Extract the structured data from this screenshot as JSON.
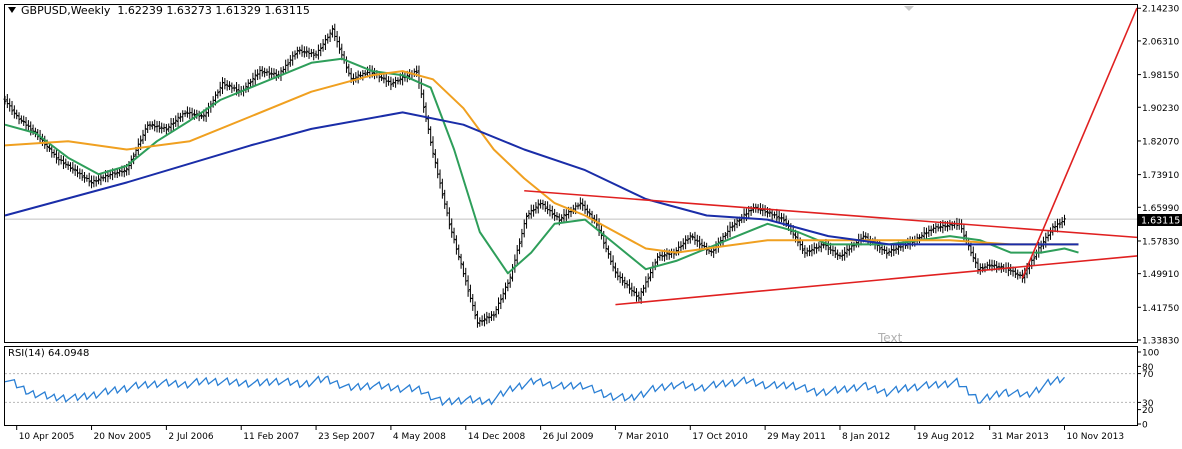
{
  "chart_title": {
    "symbol": "GBPUSD,Weekly",
    "ohlc": "1.62239 1.63273 1.61329 1.63115"
  },
  "rsi_label": "RSI(14) 64.0948",
  "annotation_text": "Text",
  "price_tag": "1.63115",
  "chart_data": [
    {
      "type": "line",
      "panel": "main-price",
      "title": "GBPUSD,Weekly",
      "ylim": [
        1.3383,
        2.1429
      ],
      "y_ticks": [
        "2.14230",
        "2.06310",
        "1.98150",
        "1.90230",
        "1.82070",
        "1.73910",
        "1.65990",
        "1.57830",
        "1.49910",
        "1.41750",
        "1.33830"
      ],
      "x_ticks": [
        "10 Apr 2005",
        "20 Nov 2005",
        "2 Jul 2006",
        "11 Feb 2007",
        "23 Sep 2007",
        "4 May 2008",
        "14 Dec 2008",
        "26 Jul 2009",
        "7 Mar 2010",
        "17 Oct 2010",
        "29 May 2011",
        "8 Jan 2012",
        "19 Aug 2012",
        "31 Mar 2013",
        "10 Nov 2013"
      ],
      "x_tick_dates": [
        "2005-04-10",
        "2005-11-20",
        "2006-07-02",
        "2007-02-11",
        "2007-09-23",
        "2008-05-04",
        "2008-12-14",
        "2009-07-26",
        "2010-03-07",
        "2010-10-17",
        "2011-05-29",
        "2012-01-08",
        "2012-08-19",
        "2013-03-31",
        "2013-11-10"
      ],
      "x_range": [
        "2005-03-06",
        "2014-06-15"
      ],
      "current_price": 1.63115,
      "price_points": [
        [
          "2005-03-06",
          1.92
        ],
        [
          "2005-04-10",
          1.88
        ],
        [
          "2005-06-05",
          1.84
        ],
        [
          "2005-08-07",
          1.78
        ],
        [
          "2005-10-16",
          1.74
        ],
        [
          "2005-11-20",
          1.72
        ],
        [
          "2006-01-15",
          1.74
        ],
        [
          "2006-03-05",
          1.75
        ],
        [
          "2006-05-07",
          1.86
        ],
        [
          "2006-07-02",
          1.85
        ],
        [
          "2006-08-27",
          1.89
        ],
        [
          "2006-10-22",
          1.88
        ],
        [
          "2006-12-17",
          1.96
        ],
        [
          "2007-02-11",
          1.94
        ],
        [
          "2007-04-08",
          1.99
        ],
        [
          "2007-06-03",
          1.98
        ],
        [
          "2007-07-29",
          2.04
        ],
        [
          "2007-09-23",
          2.03
        ],
        [
          "2007-11-11",
          2.09
        ],
        [
          "2008-01-06",
          1.97
        ],
        [
          "2008-03-02",
          1.99
        ],
        [
          "2008-05-04",
          1.96
        ],
        [
          "2008-07-20",
          1.99
        ],
        [
          "2008-09-07",
          1.79
        ],
        [
          "2008-10-26",
          1.62
        ],
        [
          "2008-11-30",
          1.52
        ],
        [
          "2009-01-18",
          1.38
        ],
        [
          "2009-03-08",
          1.4
        ],
        [
          "2009-04-26",
          1.49
        ],
        [
          "2009-06-14",
          1.64
        ],
        [
          "2009-07-26",
          1.67
        ],
        [
          "2009-09-20",
          1.63
        ],
        [
          "2009-11-22",
          1.67
        ],
        [
          "2010-01-10",
          1.62
        ],
        [
          "2010-03-07",
          1.5
        ],
        [
          "2010-05-16",
          1.44
        ],
        [
          "2010-07-11",
          1.54
        ],
        [
          "2010-08-29",
          1.55
        ],
        [
          "2010-10-17",
          1.59
        ],
        [
          "2010-12-19",
          1.55
        ],
        [
          "2011-02-13",
          1.61
        ],
        [
          "2011-04-24",
          1.66
        ],
        [
          "2011-05-29",
          1.65
        ],
        [
          "2011-07-24",
          1.63
        ],
        [
          "2011-09-25",
          1.55
        ],
        [
          "2011-11-20",
          1.57
        ],
        [
          "2012-01-08",
          1.54
        ],
        [
          "2012-03-18",
          1.59
        ],
        [
          "2012-05-27",
          1.55
        ],
        [
          "2012-08-19",
          1.58
        ],
        [
          "2012-10-14",
          1.61
        ],
        [
          "2012-12-30",
          1.62
        ],
        [
          "2013-02-24",
          1.51
        ],
        [
          "2013-03-31",
          1.52
        ],
        [
          "2013-05-26",
          1.51
        ],
        [
          "2013-07-07",
          1.49
        ],
        [
          "2013-08-25",
          1.56
        ],
        [
          "2013-10-06",
          1.61
        ],
        [
          "2013-11-10",
          1.63
        ]
      ],
      "series": [
        {
          "color": "#2e9e5a",
          "values": [
            [
              "2005-03-06",
              1.86
            ],
            [
              "2005-06-05",
              1.84
            ],
            [
              "2005-09-11",
              1.78
            ],
            [
              "2005-12-11",
              1.74
            ],
            [
              "2006-03-05",
              1.76
            ],
            [
              "2006-06-04",
              1.82
            ],
            [
              "2006-09-10",
              1.87
            ],
            [
              "2006-12-10",
              1.92
            ],
            [
              "2007-03-11",
              1.95
            ],
            [
              "2007-06-10",
              1.98
            ],
            [
              "2007-09-09",
              2.01
            ],
            [
              "2007-12-09",
              2.02
            ],
            [
              "2008-03-09",
              1.99
            ],
            [
              "2008-06-08",
              1.98
            ],
            [
              "2008-08-31",
              1.95
            ],
            [
              "2008-11-09",
              1.8
            ],
            [
              "2009-01-25",
              1.6
            ],
            [
              "2009-04-19",
              1.5
            ],
            [
              "2009-06-28",
              1.55
            ],
            [
              "2009-09-06",
              1.62
            ],
            [
              "2009-12-06",
              1.63
            ],
            [
              "2010-03-07",
              1.57
            ],
            [
              "2010-06-06",
              1.51
            ],
            [
              "2010-09-05",
              1.53
            ],
            [
              "2010-12-05",
              1.56
            ],
            [
              "2011-03-06",
              1.59
            ],
            [
              "2011-06-05",
              1.62
            ],
            [
              "2011-09-04",
              1.6
            ],
            [
              "2011-12-04",
              1.57
            ],
            [
              "2012-03-04",
              1.57
            ],
            [
              "2012-06-03",
              1.57
            ],
            [
              "2012-09-02",
              1.58
            ],
            [
              "2012-12-02",
              1.59
            ],
            [
              "2013-03-03",
              1.58
            ],
            [
              "2013-06-02",
              1.55
            ],
            [
              "2013-09-01",
              1.55
            ],
            [
              "2013-11-10",
              1.56
            ],
            [
              "2013-12-22",
              1.55
            ]
          ]
        },
        {
          "color": "#f0a020",
          "values": [
            [
              "2005-03-06",
              1.81
            ],
            [
              "2005-09-11",
              1.82
            ],
            [
              "2006-03-05",
              1.8
            ],
            [
              "2006-09-10",
              1.82
            ],
            [
              "2007-03-11",
              1.88
            ],
            [
              "2007-09-09",
              1.94
            ],
            [
              "2008-03-09",
              1.98
            ],
            [
              "2008-06-08",
              1.99
            ],
            [
              "2008-09-07",
              1.97
            ],
            [
              "2008-12-07",
              1.9
            ],
            [
              "2009-03-08",
              1.8
            ],
            [
              "2009-06-07",
              1.73
            ],
            [
              "2009-09-06",
              1.67
            ],
            [
              "2009-12-06",
              1.64
            ],
            [
              "2010-03-07",
              1.6
            ],
            [
              "2010-06-06",
              1.56
            ],
            [
              "2010-09-05",
              1.55
            ],
            [
              "2010-12-05",
              1.56
            ],
            [
              "2011-06-05",
              1.58
            ],
            [
              "2011-12-04",
              1.58
            ],
            [
              "2012-06-03",
              1.58
            ],
            [
              "2012-12-02",
              1.58
            ],
            [
              "2013-06-02",
              1.57
            ],
            [
              "2013-12-22",
              1.57
            ]
          ]
        },
        {
          "color": "#1a2da8",
          "values": [
            [
              "2005-03-06",
              1.64
            ],
            [
              "2006-03-05",
              1.72
            ],
            [
              "2007-03-11",
              1.81
            ],
            [
              "2007-09-09",
              1.85
            ],
            [
              "2008-06-08",
              1.89
            ],
            [
              "2008-12-07",
              1.86
            ],
            [
              "2009-06-07",
              1.8
            ],
            [
              "2009-12-06",
              1.75
            ],
            [
              "2010-06-06",
              1.68
            ],
            [
              "2010-12-05",
              1.64
            ],
            [
              "2011-06-05",
              1.63
            ],
            [
              "2011-12-04",
              1.59
            ],
            [
              "2012-06-03",
              1.57
            ],
            [
              "2013-06-02",
              1.57
            ],
            [
              "2013-12-22",
              1.57
            ]
          ]
        }
      ],
      "trendlines": [
        {
          "color": "#e02020",
          "from": [
            "2009-06-07",
            1.7
          ],
          "to": [
            "2014-06-15",
            1.587
          ]
        },
        {
          "color": "#e02020",
          "from": [
            "2010-03-07",
            1.424
          ],
          "to": [
            "2014-06-15",
            1.542
          ]
        },
        {
          "color": "#e02020",
          "from": [
            "2013-07-07",
            1.488
          ],
          "to": [
            "2014-06-15",
            2.1429
          ]
        }
      ]
    },
    {
      "type": "line",
      "panel": "rsi",
      "title": "RSI(14) 64.0948",
      "ylim": [
        0,
        100
      ],
      "y_ticks": [
        "100",
        "80",
        "70",
        "30",
        "20",
        "0"
      ],
      "levels": [
        30,
        70
      ],
      "color": "#2a7fd4",
      "values": [
        [
          "2005-03-06",
          64
        ],
        [
          "2005-05-15",
          44
        ],
        [
          "2005-07-24",
          37
        ],
        [
          "2005-10-02",
          36
        ],
        [
          "2005-11-20",
          40
        ],
        [
          "2006-01-29",
          47
        ],
        [
          "2006-04-09",
          53
        ],
        [
          "2006-06-18",
          57
        ],
        [
          "2006-08-27",
          55
        ],
        [
          "2006-11-05",
          60
        ],
        [
          "2007-01-14",
          58
        ],
        [
          "2007-03-25",
          56
        ],
        [
          "2007-06-03",
          60
        ],
        [
          "2007-08-12",
          55
        ],
        [
          "2007-10-21",
          63
        ],
        [
          "2007-12-30",
          50
        ],
        [
          "2008-03-09",
          54
        ],
        [
          "2008-05-18",
          50
        ],
        [
          "2008-07-27",
          48
        ],
        [
          "2008-10-05",
          30
        ],
        [
          "2008-12-14",
          34
        ],
        [
          "2009-02-22",
          31
        ],
        [
          "2009-05-03",
          50
        ],
        [
          "2009-07-12",
          60
        ],
        [
          "2009-09-20",
          52
        ],
        [
          "2009-11-29",
          54
        ],
        [
          "2010-02-07",
          40
        ],
        [
          "2010-04-18",
          35
        ],
        [
          "2010-06-27",
          48
        ],
        [
          "2010-09-05",
          55
        ],
        [
          "2010-11-14",
          50
        ],
        [
          "2011-01-23",
          56
        ],
        [
          "2011-04-03",
          60
        ],
        [
          "2011-06-12",
          53
        ],
        [
          "2011-08-21",
          54
        ],
        [
          "2011-10-30",
          44
        ],
        [
          "2012-01-08",
          47
        ],
        [
          "2012-03-18",
          53
        ],
        [
          "2012-05-27",
          44
        ],
        [
          "2012-08-05",
          51
        ],
        [
          "2012-10-14",
          54
        ],
        [
          "2012-12-23",
          58
        ],
        [
          "2013-03-03",
          32
        ],
        [
          "2013-05-12",
          45
        ],
        [
          "2013-07-21",
          40
        ],
        [
          "2013-09-29",
          58
        ],
        [
          "2013-11-10",
          64
        ]
      ]
    }
  ]
}
